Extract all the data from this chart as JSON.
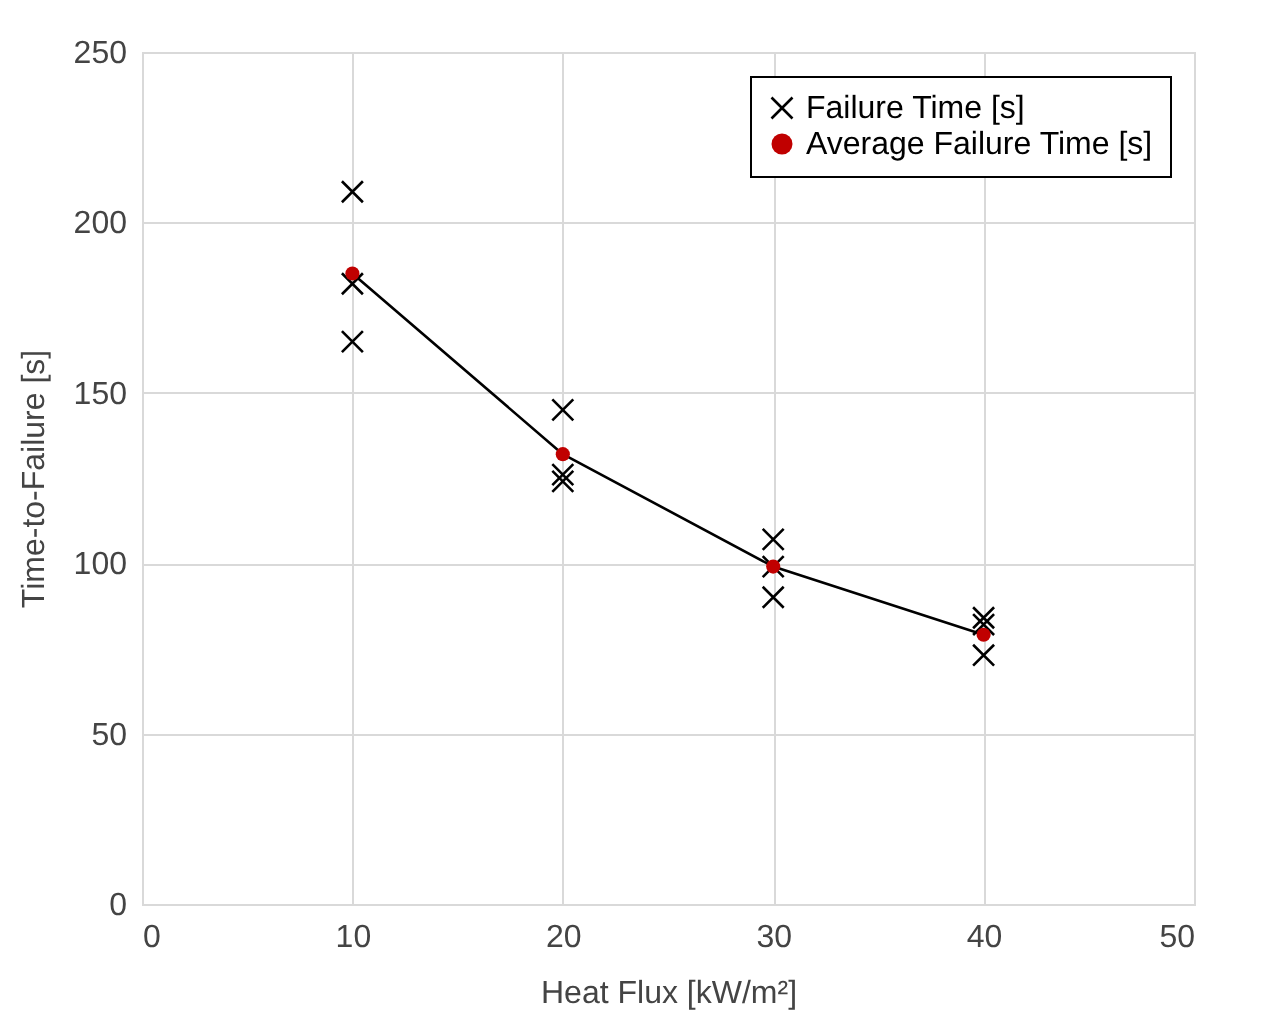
{
  "chart_data": {
    "type": "scatter",
    "xlabel": "Heat Flux [kW/m²]",
    "ylabel": "Time-to-Failure [s]",
    "xlim": [
      0,
      50
    ],
    "xticks": [
      0,
      10,
      20,
      30,
      40,
      50
    ],
    "ylim": [
      0,
      250
    ],
    "yticks": [
      0,
      50,
      100,
      150,
      200,
      250
    ],
    "grid": true,
    "legend": "top right",
    "series": [
      {
        "name": "Failure Time [s]",
        "marker": "cross",
        "color": "#000000",
        "x": [
          10,
          10,
          10,
          20,
          20,
          20,
          30,
          30,
          30,
          40,
          40,
          40
        ],
        "values": [
          209,
          182,
          165,
          145,
          126,
          124,
          107,
          99,
          90,
          84,
          82,
          73
        ]
      },
      {
        "type": "line",
        "marker": "none",
        "color": "#000000",
        "x": [
          10,
          20,
          30,
          40
        ],
        "values": [
          185,
          132,
          99,
          79
        ]
      },
      {
        "name": "Average Failure Time [s]",
        "marker": "circle",
        "color": "#c00000",
        "x": [
          10,
          20,
          30,
          40
        ],
        "values": [
          185,
          132,
          99,
          79
        ]
      }
    ]
  }
}
